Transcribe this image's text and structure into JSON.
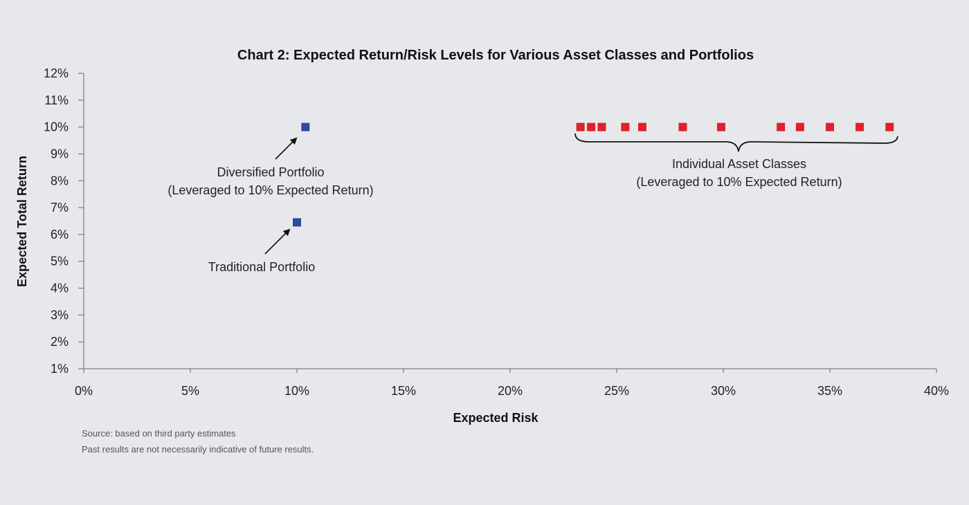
{
  "chart_data": {
    "type": "scatter",
    "title": "Chart 2: Expected Return/Risk Levels for Various Asset Classes and Portfolios",
    "xlabel": "Expected Risk",
    "ylabel": "Expected Total Return",
    "xlim": [
      0,
      40
    ],
    "ylim": [
      1,
      12
    ],
    "x_ticks": [
      "0%",
      "5%",
      "10%",
      "15%",
      "20%",
      "25%",
      "30%",
      "35%",
      "40%"
    ],
    "y_ticks": [
      "1%",
      "2%",
      "3%",
      "4%",
      "5%",
      "6%",
      "7%",
      "8%",
      "9%",
      "10%",
      "11%",
      "12%"
    ],
    "series": [
      {
        "points": [
          {
            "x": 10.4,
            "y": 10.0
          },
          {
            "x": 10.0,
            "y": 6.45
          }
        ],
        "color": "#2e4a9e"
      },
      {
        "points": [
          {
            "x": 23.3,
            "y": 10.0
          },
          {
            "x": 23.8,
            "y": 10.0
          },
          {
            "x": 24.3,
            "y": 10.0
          },
          {
            "x": 25.4,
            "y": 10.0
          },
          {
            "x": 26.2,
            "y": 10.0
          },
          {
            "x": 28.1,
            "y": 10.0
          },
          {
            "x": 29.9,
            "y": 10.0
          },
          {
            "x": 32.7,
            "y": 10.0
          },
          {
            "x": 33.6,
            "y": 10.0
          },
          {
            "x": 35.0,
            "y": 10.0
          },
          {
            "x": 36.4,
            "y": 10.0
          },
          {
            "x": 37.8,
            "y": 10.0
          }
        ],
        "color": "#e0202a"
      }
    ],
    "annotations": {
      "diversified": [
        "Diversified Portfolio",
        "(Leveraged to 10% Expected Return)"
      ],
      "traditional": [
        "Traditional Portfolio"
      ],
      "individual": [
        "Individual Asset Classes",
        "(Leveraged to 10% Expected Return)"
      ]
    },
    "grid": false
  },
  "footnotes": {
    "source": "Source: based on third party estimates",
    "disclaimer": "Past results are not necessarily indicative of future results."
  }
}
